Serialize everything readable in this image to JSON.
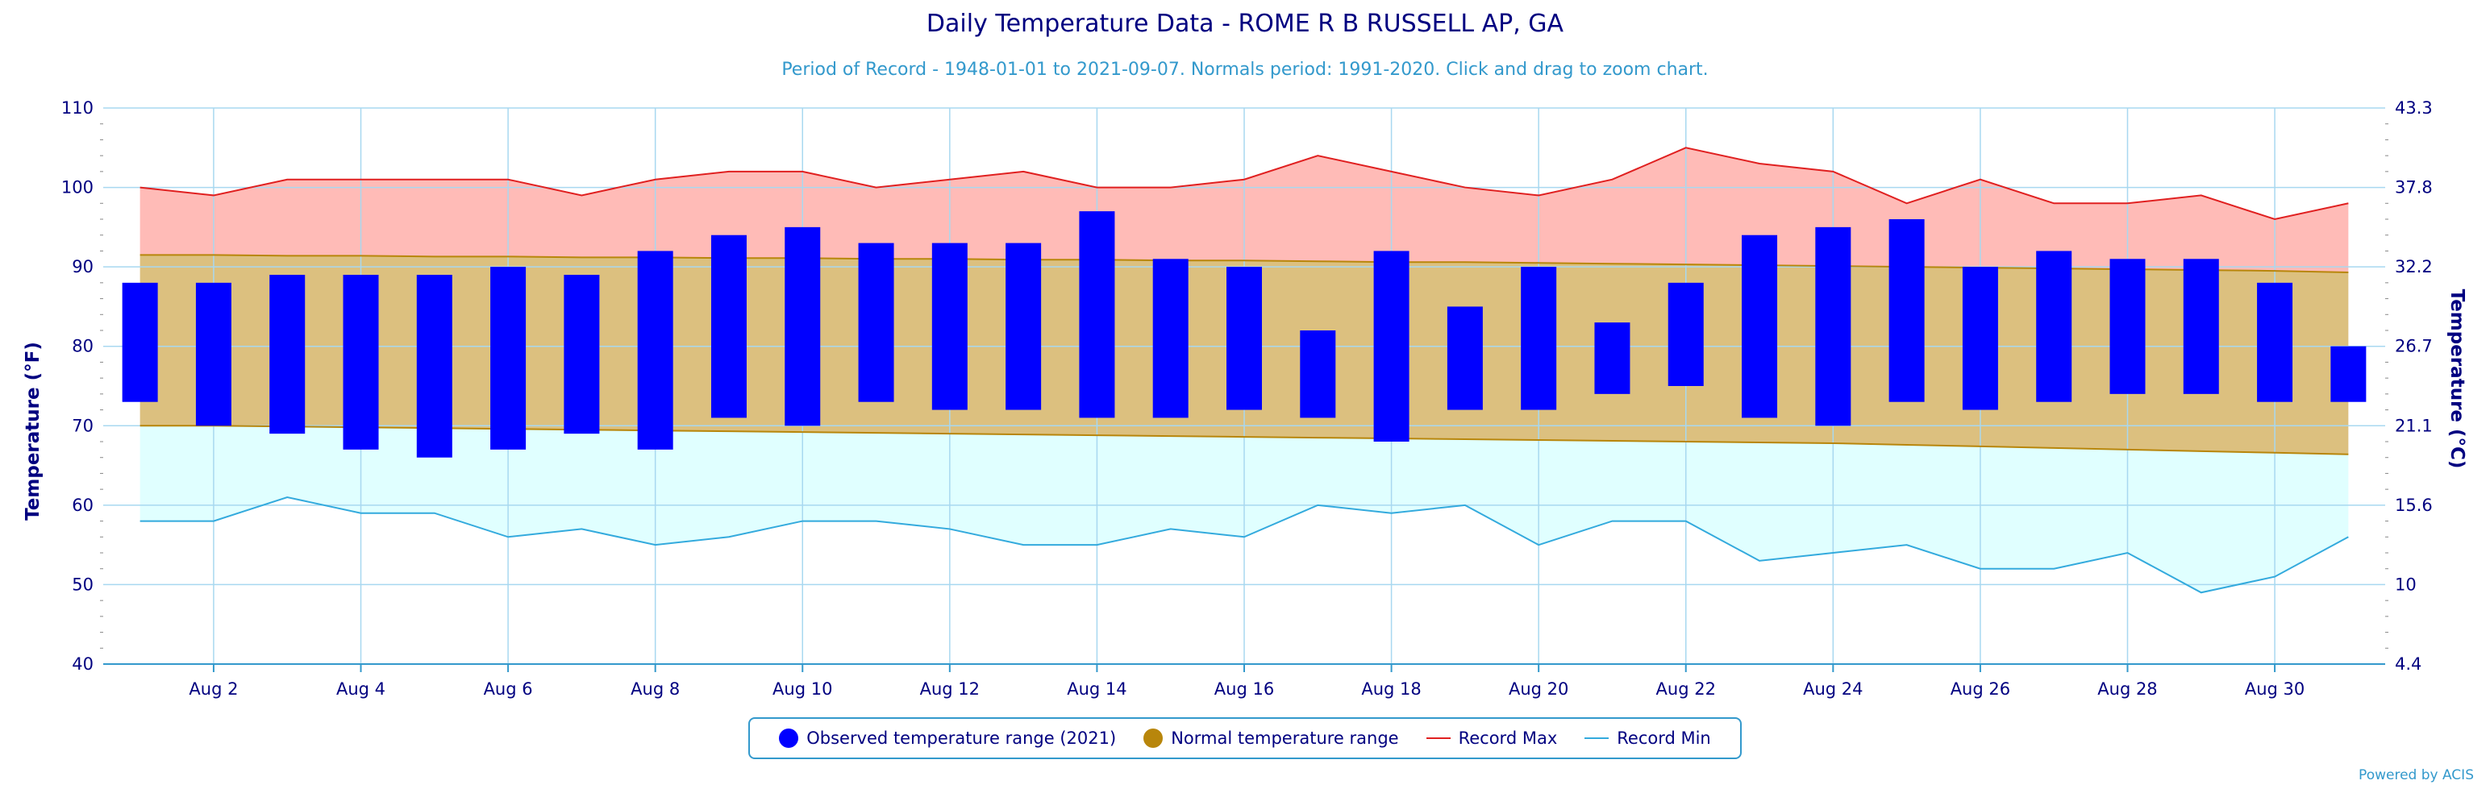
{
  "title": "Daily Temperature Data - ROME R B RUSSELL AP, GA",
  "subtitle": "Period of Record - 1948-01-01 to 2021-09-07. Normals period: 1991-2020. Click and drag to zoom chart.",
  "credits": "Powered by ACIS",
  "colors": {
    "observed": "#0000ff",
    "normal_fill": "#dcc07f",
    "normal_line": "#b8860b",
    "record_max_fill": "#ffbbb7",
    "record_max_line": "#e02020",
    "record_min_fill": "#e0ffff",
    "record_min_line": "#33aadd",
    "grid": "#a8d8f0",
    "text": "#000080"
  },
  "legend": {
    "observed": "Observed temperature range (2021)",
    "normal": "Normal temperature range",
    "record_max": "Record Max",
    "record_min": "Record Min"
  },
  "chart_data": {
    "type": "bar",
    "title": "Daily Temperature Data - ROME R B RUSSELL AP, GA",
    "ylabel_left": "Temperature (°F)",
    "ylabel_right": "Temperature (°C)",
    "ylim": [
      40,
      110
    ],
    "yticks_left": [
      40,
      50,
      60,
      70,
      80,
      90,
      100,
      110
    ],
    "yticks_right": [
      "4.4",
      "10",
      "15.6",
      "21.1",
      "26.7",
      "32.2",
      "37.8",
      "43.3"
    ],
    "grid": true,
    "legend_position": "bottom-center",
    "days": [
      1,
      2,
      3,
      4,
      5,
      6,
      7,
      8,
      9,
      10,
      11,
      12,
      13,
      14,
      15,
      16,
      17,
      18,
      19,
      20,
      21,
      22,
      23,
      24,
      25,
      26,
      27,
      28,
      29,
      30,
      31
    ],
    "xtick_labels": [
      "Aug 2",
      "Aug 4",
      "Aug 6",
      "Aug 8",
      "Aug 10",
      "Aug 12",
      "Aug 14",
      "Aug 16",
      "Aug 18",
      "Aug 20",
      "Aug 22",
      "Aug 24",
      "Aug 26",
      "Aug 28",
      "Aug 30"
    ],
    "xtick_days": [
      2,
      4,
      6,
      8,
      10,
      12,
      14,
      16,
      18,
      20,
      22,
      24,
      26,
      28,
      30
    ],
    "series": [
      {
        "name": "Observed temperature range (2021)",
        "kind": "range_bar",
        "low": [
          73,
          70,
          69,
          67,
          66,
          67,
          69,
          67,
          71,
          70,
          73,
          72,
          72,
          71,
          71,
          72,
          71,
          68,
          72,
          72,
          74,
          75,
          71,
          70,
          73,
          72,
          73,
          74,
          74,
          73,
          73
        ],
        "high": [
          88,
          88,
          89,
          89,
          89,
          90,
          89,
          92,
          94,
          95,
          93,
          93,
          93,
          97,
          91,
          90,
          82,
          92,
          85,
          90,
          83,
          88,
          94,
          95,
          96,
          90,
          92,
          91,
          91,
          88,
          80
        ]
      },
      {
        "name": "Normal temperature range",
        "kind": "range_area",
        "low": [
          70,
          70,
          69.9,
          69.8,
          69.7,
          69.6,
          69.5,
          69.4,
          69.3,
          69.2,
          69.1,
          69,
          68.9,
          68.8,
          68.7,
          68.6,
          68.5,
          68.4,
          68.3,
          68.2,
          68.1,
          68,
          67.9,
          67.8,
          67.6,
          67.4,
          67.2,
          67,
          66.8,
          66.6,
          66.4
        ],
        "high": [
          91.5,
          91.5,
          91.4,
          91.4,
          91.3,
          91.3,
          91.2,
          91.2,
          91.1,
          91.1,
          91,
          91,
          90.9,
          90.9,
          90.8,
          90.8,
          90.7,
          90.6,
          90.6,
          90.5,
          90.4,
          90.3,
          90.2,
          90.1,
          90,
          89.9,
          89.8,
          89.7,
          89.6,
          89.5,
          89.3
        ]
      },
      {
        "name": "Record Max",
        "kind": "line",
        "values": [
          100,
          99,
          101,
          101,
          101,
          101,
          99,
          101,
          102,
          102,
          100,
          101,
          102,
          100,
          100,
          101,
          104,
          102,
          100,
          99,
          101,
          105,
          103,
          102,
          98,
          101,
          98,
          98,
          99,
          96,
          98
        ]
      },
      {
        "name": "Record Min",
        "kind": "line",
        "values": [
          58,
          58,
          61,
          59,
          59,
          56,
          57,
          55,
          56,
          58,
          58,
          57,
          55,
          55,
          57,
          56,
          60,
          59,
          60,
          55,
          58,
          58,
          53,
          54,
          55,
          52,
          52,
          54,
          49,
          51,
          56
        ]
      }
    ]
  }
}
